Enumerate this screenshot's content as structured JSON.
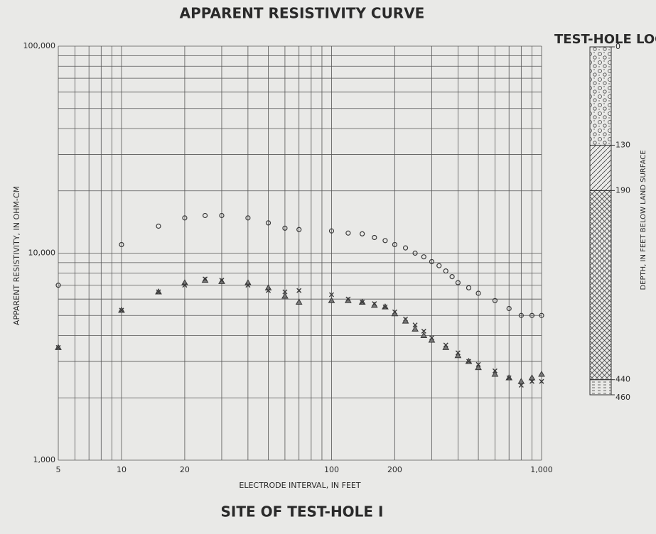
{
  "chart_data": {
    "type": "scatter",
    "title": "APPARENT RESISTIVITY CURVE",
    "subtitle": "SITE OF TEST-HOLE I",
    "x_label": "ELECTRODE INTERVAL, IN FEET",
    "y_label": "APPARENT RESISTIVITY, IN OHM-CM",
    "x_scale": "log",
    "y_scale": "log",
    "grid": true,
    "color": "#3a3a3a",
    "xlim": [
      5,
      1000
    ],
    "ylim": [
      1000,
      100000
    ],
    "xticks": [
      5,
      10,
      20,
      100,
      200,
      {
        "value": 1000,
        "label": "1,000"
      }
    ],
    "yticks": [
      {
        "value": 1000,
        "label": "1,000"
      },
      {
        "value": 10000,
        "label": "10,000"
      },
      {
        "value": 100000,
        "label": "100,000"
      }
    ],
    "minor_xticks": [
      6,
      7,
      8,
      9,
      30,
      40,
      50,
      60,
      70,
      80,
      90,
      300,
      400,
      500,
      600,
      700,
      800,
      900
    ],
    "minor_yticks": [
      2000,
      3000,
      4000,
      5000,
      6000,
      7000,
      8000,
      9000,
      20000,
      30000,
      40000,
      50000,
      60000,
      70000,
      80000,
      90000
    ],
    "series": [
      {
        "marker": "circle",
        "x": [
          5,
          10,
          15,
          20,
          25,
          30,
          40,
          50,
          60,
          70,
          100,
          120,
          140,
          160,
          180,
          200,
          225,
          250,
          275,
          300,
          325,
          350,
          375,
          400,
          450,
          500,
          600,
          700,
          800,
          900,
          1000
        ],
        "values": [
          7000,
          11000,
          13500,
          14800,
          15200,
          15200,
          14800,
          14000,
          13200,
          13000,
          12800,
          12500,
          12400,
          11900,
          11500,
          11000,
          10600,
          10000,
          9600,
          9100,
          8700,
          8200,
          7700,
          7200,
          6800,
          6400,
          5900,
          5400,
          5000,
          5000,
          5000
        ]
      },
      {
        "marker": "triangle",
        "x": [
          5,
          10,
          15,
          20,
          25,
          30,
          40,
          50,
          60,
          70,
          100,
          120,
          140,
          160,
          180,
          200,
          225,
          250,
          275,
          300,
          350,
          400,
          450,
          500,
          600,
          700,
          800,
          900,
          1000
        ],
        "values": [
          3500,
          5300,
          6500,
          7200,
          7400,
          7300,
          7200,
          6800,
          6200,
          5800,
          5900,
          5900,
          5800,
          5600,
          5500,
          5100,
          4700,
          4300,
          4000,
          3800,
          3500,
          3200,
          3000,
          2800,
          2600,
          2500,
          2400,
          2500,
          2600
        ]
      },
      {
        "marker": "cross",
        "x": [
          5,
          10,
          15,
          20,
          25,
          30,
          40,
          50,
          60,
          70,
          100,
          120,
          140,
          160,
          180,
          200,
          225,
          250,
          275,
          300,
          350,
          400,
          450,
          500,
          600,
          700,
          800,
          900,
          1000
        ],
        "values": [
          3500,
          5300,
          6500,
          7000,
          7500,
          7400,
          7000,
          6600,
          6500,
          6600,
          6300,
          6000,
          5800,
          5700,
          5500,
          5200,
          4800,
          4500,
          4200,
          3900,
          3600,
          3300,
          3000,
          2900,
          2700,
          2500,
          2300,
          2400,
          2400
        ]
      }
    ]
  },
  "log": {
    "title": "TEST-HOLE LOG",
    "axis_label": "DEPTH, IN FEET BELOW LAND SURFACE",
    "depths": [
      0,
      130,
      190,
      440,
      460
    ]
  }
}
